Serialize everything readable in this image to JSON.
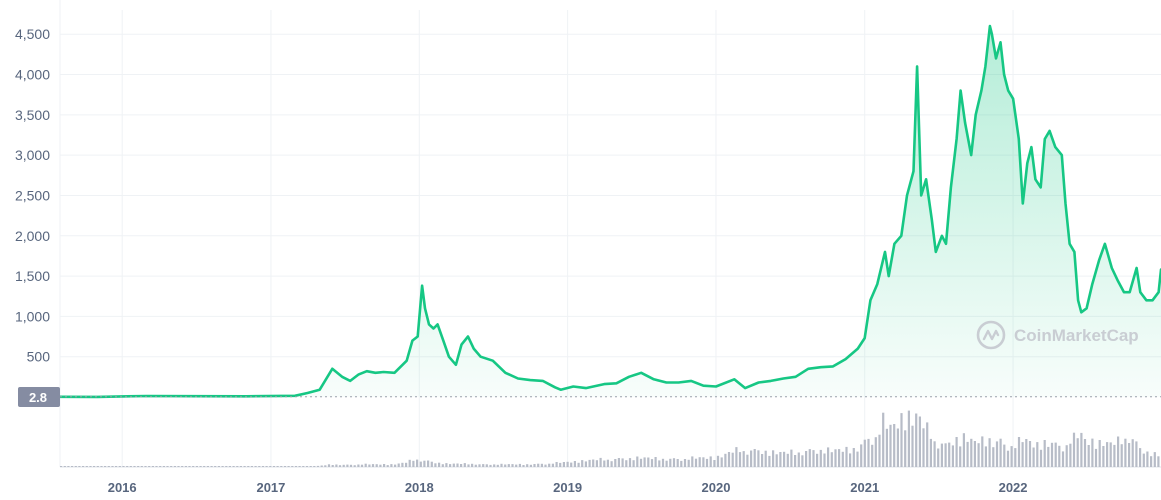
{
  "chart_data": {
    "type": "area",
    "x_range": [
      "2015-08-01",
      "2022-12-31"
    ],
    "ylim": [
      0,
      4800
    ],
    "y_ticks": [
      500,
      1000,
      1500,
      2000,
      2500,
      3000,
      3500,
      4000,
      4500
    ],
    "y_tick_labels": [
      "500",
      "1,000",
      "1,500",
      "2,000",
      "2,500",
      "3,000",
      "3,500",
      "4,000",
      "4,500"
    ],
    "x_ticks": [
      "2016-01-01",
      "2017-01-01",
      "2018-01-01",
      "2019-01-01",
      "2020-01-01",
      "2021-01-01",
      "2022-01-01"
    ],
    "x_tick_labels": [
      "2016",
      "2017",
      "2018",
      "2019",
      "2020",
      "2021",
      "2022"
    ],
    "current_label": "2.8",
    "grid": true,
    "watermark": "CoinMarketCap",
    "colors": {
      "line": "#16c784",
      "fill_top": "#16c784",
      "volume": "#b7bcc7",
      "badge": "#858ca2",
      "grid": "#eff2f5",
      "axis_text": "#58667e"
    },
    "series": [
      {
        "x": [
          "2015-08-01",
          "2015-11-01",
          "2016-03-01",
          "2016-07-01",
          "2016-11-01",
          "2017-03-01",
          "2017-04-01",
          "2017-05-01",
          "2017-06-01",
          "2017-06-25",
          "2017-07-15",
          "2017-08-05",
          "2017-08-25",
          "2017-09-15",
          "2017-10-05",
          "2017-11-01",
          "2017-12-01",
          "2017-12-15",
          "2017-12-28",
          "2018-01-08",
          "2018-01-15",
          "2018-01-25",
          "2018-02-05",
          "2018-02-15",
          "2018-03-01",
          "2018-03-15",
          "2018-04-01",
          "2018-04-15",
          "2018-05-01",
          "2018-05-15",
          "2018-06-01",
          "2018-07-01",
          "2018-08-01",
          "2018-09-01",
          "2018-10-01",
          "2018-11-01",
          "2018-12-01",
          "2018-12-15",
          "2019-01-15",
          "2019-02-15",
          "2019-04-01",
          "2019-05-01",
          "2019-06-01",
          "2019-07-01",
          "2019-08-01",
          "2019-09-01",
          "2019-10-01",
          "2019-11-01",
          "2019-12-01",
          "2020-01-01",
          "2020-02-15",
          "2020-03-13",
          "2020-04-15",
          "2020-05-15",
          "2020-06-15",
          "2020-07-15",
          "2020-08-15",
          "2020-09-15",
          "2020-10-15",
          "2020-11-15",
          "2020-12-15",
          "2021-01-01",
          "2021-01-15",
          "2021-02-01",
          "2021-02-20",
          "2021-03-01",
          "2021-03-15",
          "2021-04-01",
          "2021-04-15",
          "2021-05-01",
          "2021-05-10",
          "2021-05-20",
          "2021-06-01",
          "2021-06-15",
          "2021-06-25",
          "2021-07-10",
          "2021-07-20",
          "2021-08-01",
          "2021-08-15",
          "2021-08-25",
          "2021-09-05",
          "2021-09-20",
          "2021-10-01",
          "2021-10-15",
          "2021-10-25",
          "2021-11-05",
          "2021-11-10",
          "2021-11-20",
          "2021-12-01",
          "2021-12-10",
          "2021-12-20",
          "2022-01-01",
          "2022-01-15",
          "2022-01-25",
          "2022-02-05",
          "2022-02-15",
          "2022-02-25",
          "2022-03-10",
          "2022-03-20",
          "2022-04-01",
          "2022-04-15",
          "2022-05-01",
          "2022-05-10",
          "2022-05-20",
          "2022-06-01",
          "2022-06-10",
          "2022-06-18",
          "2022-07-01",
          "2022-07-15",
          "2022-08-01",
          "2022-08-15",
          "2022-09-01",
          "2022-09-15",
          "2022-10-01",
          "2022-10-15",
          "2022-11-01",
          "2022-11-10",
          "2022-11-25",
          "2022-12-10",
          "2022-12-25",
          "2022-12-31"
        ],
        "y": [
          2.8,
          1,
          12,
          10,
          9,
          15,
          50,
          90,
          350,
          250,
          200,
          280,
          320,
          300,
          310,
          300,
          450,
          700,
          750,
          1380,
          1100,
          900,
          850,
          900,
          700,
          500,
          400,
          650,
          750,
          600,
          500,
          450,
          300,
          230,
          210,
          200,
          120,
          90,
          130,
          110,
          160,
          170,
          250,
          300,
          220,
          180,
          180,
          200,
          140,
          130,
          220,
          110,
          180,
          200,
          230,
          250,
          350,
          370,
          380,
          470,
          600,
          730,
          1200,
          1400,
          1800,
          1500,
          1900,
          2000,
          2500,
          2800,
          4100,
          2500,
          2700,
          2200,
          1800,
          2000,
          1900,
          2600,
          3200,
          3800,
          3400,
          3000,
          3500,
          3800,
          4100,
          4600,
          4500,
          4200,
          4400,
          4000,
          3800,
          3700,
          3200,
          2400,
          2900,
          3100,
          2700,
          2600,
          3200,
          3300,
          3100,
          3000,
          2400,
          1900,
          1800,
          1200,
          1050,
          1100,
          1400,
          1700,
          1900,
          1600,
          1450,
          1300,
          1300,
          1600,
          1300,
          1200,
          1200,
          1300,
          1580
        ],
        "volume_rel": [
          0.003,
          0.003,
          0.004,
          0.004,
          0.004,
          0.006,
          0.01,
          0.02,
          0.05,
          0.04,
          0.04,
          0.05,
          0.05,
          0.05,
          0.05,
          0.05,
          0.08,
          0.12,
          0.15,
          0.14,
          0.12,
          0.11,
          0.09,
          0.08,
          0.07,
          0.06,
          0.06,
          0.06,
          0.06,
          0.06,
          0.05,
          0.05,
          0.05,
          0.05,
          0.05,
          0.06,
          0.07,
          0.08,
          0.1,
          0.12,
          0.14,
          0.15,
          0.16,
          0.17,
          0.16,
          0.15,
          0.15,
          0.16,
          0.17,
          0.18,
          0.28,
          0.33,
          0.3,
          0.28,
          0.26,
          0.27,
          0.3,
          0.32,
          0.3,
          0.32,
          0.35,
          0.45,
          0.55,
          0.6,
          0.85,
          0.7,
          0.75,
          0.9,
          1.0,
          0.9,
          0.95,
          0.85,
          0.7,
          0.6,
          0.5,
          0.45,
          0.4,
          0.45,
          0.55,
          0.5,
          0.55,
          0.5,
          0.45,
          0.5,
          0.45,
          0.55,
          0.5,
          0.45,
          0.5,
          0.42,
          0.4,
          0.4,
          0.45,
          0.5,
          0.48,
          0.45,
          0.4,
          0.42,
          0.48,
          0.45,
          0.42,
          0.4,
          0.42,
          0.48,
          0.5,
          0.55,
          0.6,
          0.48,
          0.5,
          0.45,
          0.45,
          0.42,
          0.45,
          0.52,
          0.6,
          0.45,
          0.35,
          0.3,
          0.25,
          0.22,
          0.22
        ]
      }
    ]
  }
}
